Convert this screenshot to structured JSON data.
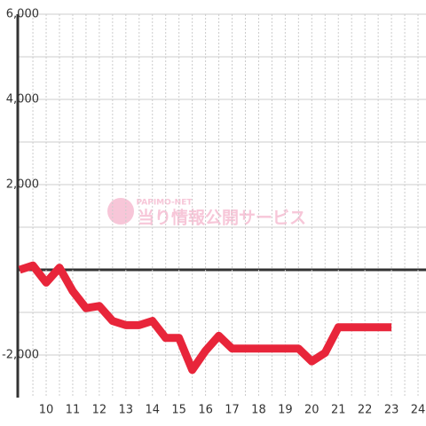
{
  "chart_data": {
    "type": "line",
    "watermark_small": "PAPIMO-NET",
    "watermark": "当り情報公開サービス",
    "x": [
      9,
      9.5,
      10,
      10.5,
      11,
      11.5,
      12,
      12.5,
      13,
      13.5,
      14,
      14.5,
      15,
      15.5,
      16,
      16.5,
      17,
      17.5,
      18,
      18.5,
      19,
      19.5,
      20,
      20.5,
      21,
      21.5,
      22,
      22.5,
      23
    ],
    "series": [
      {
        "color": "#e8253a",
        "values": [
          0,
          100,
          -300,
          50,
          -500,
          -900,
          -850,
          -1200,
          -1300,
          -1300,
          -1200,
          -1600,
          -1600,
          -2350,
          -1900,
          -1550,
          -1850,
          -1850,
          -1850,
          -1850,
          -1850,
          -1850,
          -2150,
          -1950,
          -1350,
          -1350,
          -1350,
          -1350,
          -1350
        ]
      }
    ],
    "xlim": [
      8.93,
      24.3
    ],
    "xticks": [
      10,
      11,
      12,
      13,
      14,
      15,
      16,
      17,
      18,
      19,
      20,
      21,
      22,
      23,
      24
    ],
    "x_minor_ticks": [
      9.5,
      10.5,
      11.5,
      12.5,
      13.5,
      14.5,
      15.5,
      16.5,
      17.5,
      18.5,
      19.5,
      20.5,
      21.5,
      22.5,
      23.5
    ],
    "ylim": [
      -3000,
      6000
    ],
    "yticks": [
      {
        "value": -2000,
        "label": "-2,000"
      },
      0,
      {
        "value": 2000,
        "label": "2,000"
      },
      {
        "value": 4000,
        "label": "4,000"
      },
      {
        "value": 6000,
        "label": "6,000"
      }
    ],
    "y_minor_ticks": [
      -1000,
      1000,
      3000,
      5000
    ],
    "grid": true
  }
}
